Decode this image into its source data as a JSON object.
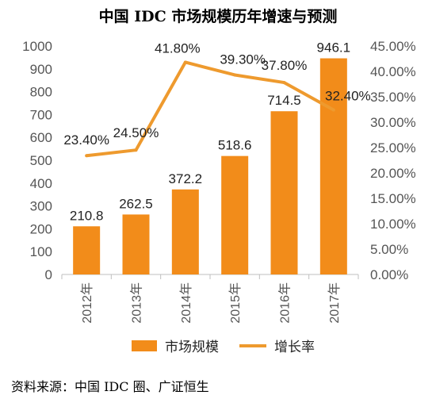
{
  "title": "中国 IDC 市场规模历年增速与预测",
  "source": "资料来源：中国 IDC 圈、广证恒生",
  "chart_data": {
    "type": "bar+line",
    "categories": [
      "2012年",
      "2013年",
      "2014年",
      "2015年",
      "2016年",
      "2017年"
    ],
    "series": [
      {
        "name": "市场规模",
        "type": "bar",
        "axis": "left",
        "values": [
          210.8,
          262.5,
          372.2,
          518.6,
          714.5,
          946.1
        ],
        "labels": [
          "210.8",
          "262.5",
          "372.2",
          "518.6",
          "714.5",
          "946.1"
        ]
      },
      {
        "name": "增长率",
        "type": "line",
        "axis": "right",
        "values": [
          23.4,
          24.5,
          41.8,
          39.3,
          37.8,
          32.4
        ],
        "labels": [
          "23.40%",
          "24.50%",
          "41.80%",
          "39.30%",
          "37.80%",
          "32.40%"
        ]
      }
    ],
    "y_left": {
      "min": 0,
      "max": 1000,
      "ticks": [
        "0",
        "100",
        "200",
        "300",
        "400",
        "500",
        "600",
        "700",
        "800",
        "900",
        "1000"
      ]
    },
    "y_right": {
      "min": 0,
      "max": 45,
      "ticks": [
        "0.00%",
        "5.00%",
        "10.00%",
        "15.00%",
        "20.00%",
        "25.00%",
        "30.00%",
        "35.00%",
        "40.00%",
        "45.00%"
      ]
    },
    "legend": {
      "position": "bottom"
    },
    "colors": {
      "bar": "#f28c1a",
      "line": "#ee9a2e",
      "text": "#555555"
    },
    "grid": false
  }
}
